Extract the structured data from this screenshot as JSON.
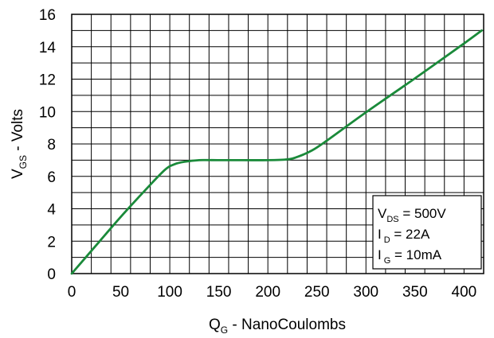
{
  "chart_data": {
    "type": "line",
    "xlabel": {
      "main": "Q",
      "sub": "G",
      "rest": " - NanoCoulombs"
    },
    "ylabel": {
      "main": "V",
      "sub": "GS",
      "rest": " - Volts"
    },
    "xlim": [
      0,
      420
    ],
    "ylim": [
      0,
      16
    ],
    "x_ticks": [
      0,
      50,
      100,
      150,
      200,
      250,
      300,
      350,
      400
    ],
    "y_ticks": [
      0,
      2,
      4,
      6,
      8,
      10,
      12,
      14,
      16
    ],
    "grid": true,
    "x_minor_step": 20,
    "y_minor_step": 1,
    "line_color": "#1a8a3a",
    "series": [
      {
        "x": [
          0,
          25,
          50,
          75,
          95,
          105,
          115,
          130,
          150,
          175,
          200,
          220,
          230,
          245,
          260,
          300,
          350,
          400,
          418
        ],
        "y": [
          0,
          1.75,
          3.5,
          5.15,
          6.4,
          6.75,
          6.9,
          7.0,
          7.0,
          7.0,
          7.0,
          7.05,
          7.2,
          7.6,
          8.2,
          9.95,
          12.05,
          14.2,
          15.0
        ]
      }
    ],
    "legend": {
      "position": "bottom-right",
      "lines": [
        {
          "main": "V",
          "sub": "DS",
          "rest": " = 500V"
        },
        {
          "main": "I",
          "sub": "D",
          "rest": " = 22A"
        },
        {
          "main": "I",
          "sub": "G",
          "rest": " = 10mA"
        }
      ]
    }
  }
}
